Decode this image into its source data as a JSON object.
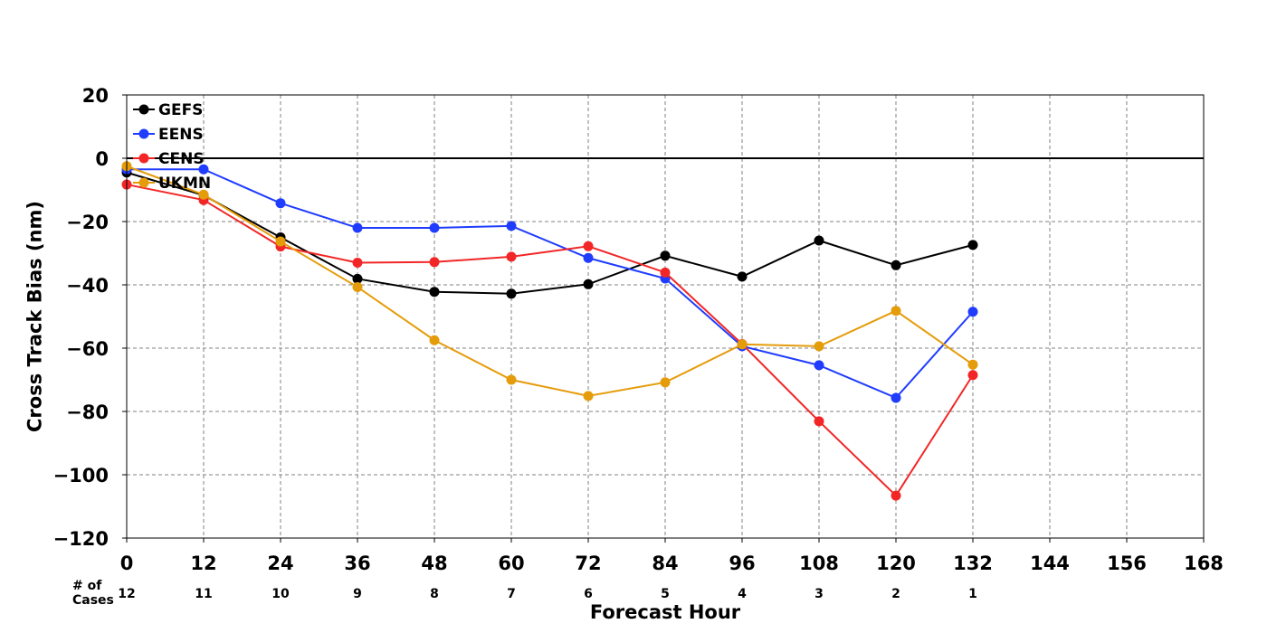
{
  "chart_data": {
    "type": "line",
    "xlabel": "Forecast Hour",
    "ylabel": "Cross Track Bias (nm)",
    "xlim": [
      0,
      168
    ],
    "ylim": [
      -120,
      20
    ],
    "x_ticks": [
      0,
      12,
      24,
      36,
      48,
      60,
      72,
      84,
      96,
      108,
      120,
      132,
      144,
      156,
      168
    ],
    "y_ticks": [
      20,
      0,
      -20,
      -40,
      -60,
      -80,
      -100,
      -120
    ],
    "y_tick_labels": [
      "20",
      "0",
      "−20",
      "−40",
      "−60",
      "−80",
      "−100",
      "−120"
    ],
    "grid": true,
    "grid_style": "dashed",
    "zero_line": true,
    "legend_position": "top-left",
    "cases_label": "# of Cases",
    "cases_label_lines": [
      "# of",
      "Cases"
    ],
    "cases": [
      {
        "x": 0,
        "n": "12"
      },
      {
        "x": 12,
        "n": "11"
      },
      {
        "x": 24,
        "n": "10"
      },
      {
        "x": 36,
        "n": "9"
      },
      {
        "x": 48,
        "n": "8"
      },
      {
        "x": 60,
        "n": "7"
      },
      {
        "x": 72,
        "n": "6"
      },
      {
        "x": 84,
        "n": "5"
      },
      {
        "x": 96,
        "n": "4"
      },
      {
        "x": 108,
        "n": "3"
      },
      {
        "x": 120,
        "n": "2"
      },
      {
        "x": 132,
        "n": "1"
      }
    ],
    "series": [
      {
        "name": "GEFS",
        "color": "#000000",
        "x": [
          0,
          12,
          24,
          36,
          48,
          60,
          72,
          84,
          96,
          108,
          120,
          132
        ],
        "y": [
          -4.5,
          -11.7,
          -25,
          -38.1,
          -42.2,
          -42.8,
          -39.8,
          -30.8,
          -37.4,
          -26,
          -33.8,
          -27.4
        ]
      },
      {
        "name": "EENS",
        "color": "#1f3cff",
        "x": [
          0,
          12,
          24,
          36,
          48,
          60,
          72,
          84,
          96,
          108,
          120,
          132
        ],
        "y": [
          -3.5,
          -3.5,
          -14.2,
          -22,
          -22,
          -21.4,
          -31.5,
          -38,
          -59.4,
          -65.4,
          -75.7,
          -48.5
        ]
      },
      {
        "name": "CENS",
        "color": "#f22626",
        "x": [
          0,
          12,
          24,
          36,
          48,
          60,
          72,
          84,
          96,
          108,
          120,
          132
        ],
        "y": [
          -8.3,
          -13.2,
          -27.9,
          -33,
          -32.8,
          -31.1,
          -27.8,
          -36.1,
          -58.7,
          -83.1,
          -106.6,
          -68.5
        ]
      },
      {
        "name": "UKMN",
        "color": "#e59c0a",
        "x": [
          0,
          12,
          24,
          36,
          48,
          60,
          72,
          84,
          96,
          108,
          120,
          132
        ],
        "y": [
          -2.5,
          -11.5,
          -26.3,
          -40.7,
          -57.5,
          -70,
          -75.1,
          -70.8,
          -58.8,
          -59.4,
          -48.2,
          -65.2
        ]
      }
    ]
  }
}
